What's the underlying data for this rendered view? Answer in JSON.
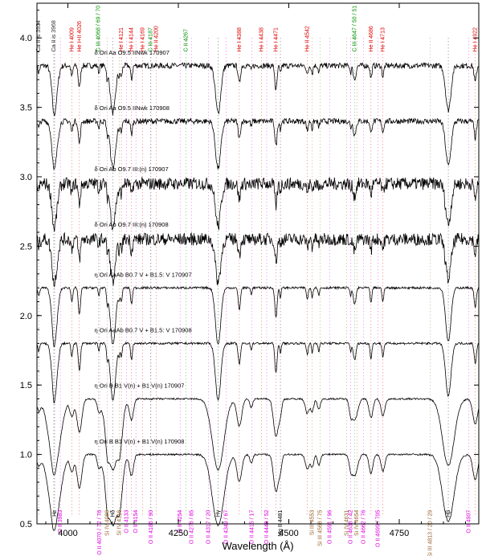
{
  "chart_data": {
    "type": "line",
    "title": "",
    "xlabel": "Wavelength (Å)",
    "ylabel": "",
    "xlim": [
      3930,
      4930
    ],
    "ylim": [
      0.5,
      4.25
    ],
    "x_ticks": [
      {
        "v": 4000,
        "label": "4000"
      },
      {
        "v": 4250,
        "label": "4250"
      },
      {
        "v": 4500,
        "label": "4500"
      },
      {
        "v": 4750,
        "label": "4750"
      }
    ],
    "y_ticks": [
      {
        "v": 0.5,
        "label": "0.5"
      },
      {
        "v": 1.0,
        "label": "1.0"
      },
      {
        "v": 1.5,
        "label": "1.5"
      },
      {
        "v": 2.0,
        "label": "2.0"
      },
      {
        "v": 2.5,
        "label": "2.5"
      },
      {
        "v": 3.0,
        "label": "3.0"
      },
      {
        "v": 3.5,
        "label": "3.5"
      },
      {
        "v": 4.0,
        "label": "4.0"
      }
    ],
    "colors": {
      "caii": "#333333",
      "hei": "#e00000",
      "ciii": "#009000",
      "oii": "#e000e0",
      "siiii": "#996633",
      "hydrogen": "#000000",
      "spectrum": "#000000"
    },
    "series": [
      {
        "name": "δ Ori Aa   O9.5 IINwk 170907",
        "offset": 3.8,
        "depth": 1.0,
        "noise": 0.02,
        "label_x": 4060,
        "label_dy": 0.08
      },
      {
        "name": "δ Ori Aa   O9.5 IINwk 170908",
        "offset": 3.4,
        "depth": 1.0,
        "noise": 0.02,
        "label_x": 4060,
        "label_dy": 0.08
      },
      {
        "name": "δ Ori Ab   O9.7 III:(n) 170907",
        "offset": 2.95,
        "depth": 0.9,
        "noise": 0.045,
        "label_x": 4060,
        "label_dy": 0.09
      },
      {
        "name": "δ Ori Ab   O9.7 III:(n) 170908",
        "offset": 2.55,
        "depth": 0.9,
        "noise": 0.045,
        "label_x": 4060,
        "label_dy": 0.09
      },
      {
        "name": "η Ori AaAb   B0.7 V + B1.5: V 170907",
        "offset": 2.2,
        "depth": 1.2,
        "noise": 0.008,
        "label_x": 4060,
        "label_dy": 0.08
      },
      {
        "name": "η Ori AaAb   B0.7 V + B1.5: V 170908",
        "offset": 1.8,
        "depth": 1.2,
        "noise": 0.008,
        "label_x": 4060,
        "label_dy": 0.08
      },
      {
        "name": "η Ori B   B1 V(n) + B1 V(n) 170907",
        "offset": 1.4,
        "depth": 1.5,
        "noise": 0.006,
        "label_x": 4060,
        "label_dy": 0.08
      },
      {
        "name": "η Ori B   B1 V(n) + B1 V(n) 170908",
        "offset": 1.0,
        "depth": 1.5,
        "noise": 0.006,
        "label_x": 4060,
        "label_dy": 0.08
      }
    ],
    "top_lines": [
      {
        "label": "Ca II is 3934",
        "x": 3934,
        "group": "caii"
      },
      {
        "label": "Ca II is 3968",
        "x": 3968,
        "group": "caii"
      },
      {
        "label": "He I 4009",
        "x": 4009,
        "group": "hei"
      },
      {
        "label": "He I+II 4026",
        "x": 4026,
        "group": "hei"
      },
      {
        "label": "C III 4068 / 69 / 70",
        "x": 4069,
        "group": "ciii"
      },
      {
        "label": "He I 4121",
        "x": 4121,
        "group": "hei"
      },
      {
        "label": "He I 4144",
        "x": 4144,
        "group": "hei"
      },
      {
        "label": "He I 4169",
        "x": 4169,
        "group": "hei"
      },
      {
        "label": "C III 4187",
        "x": 4187,
        "group": "ciii"
      },
      {
        "label": "He II 4200",
        "x": 4200,
        "group": "hei"
      },
      {
        "label": "C II 4267",
        "x": 4267,
        "group": "ciii"
      },
      {
        "label": "He I 4388",
        "x": 4388,
        "group": "hei"
      },
      {
        "label": "He I 4438",
        "x": 4438,
        "group": "hei"
      },
      {
        "label": "He I 4471",
        "x": 4471,
        "group": "hei"
      },
      {
        "label": "He II 4542",
        "x": 4542,
        "group": "hei"
      },
      {
        "label": "C III 4647 / 50 / 51",
        "x": 4649,
        "group": "ciii"
      },
      {
        "label": "He II 4686",
        "x": 4686,
        "group": "hei"
      },
      {
        "label": "He I 4713",
        "x": 4713,
        "group": "hei"
      },
      {
        "label": "He I 4922",
        "x": 4922,
        "group": "hei"
      }
    ],
    "bottom_lines": [
      {
        "label": "Hε",
        "x": 3970,
        "group": "hydrogen"
      },
      {
        "label": "O II 3983",
        "x": 3983,
        "group": "oii"
      },
      {
        "label": "O II 4070 / 72 / 76",
        "x": 4072,
        "group": "oii"
      },
      {
        "label": "Si IV 4089",
        "x": 4089,
        "group": "siiii"
      },
      {
        "label": "Hδ",
        "x": 4102,
        "group": "hydrogen"
      },
      {
        "label": "Si IV 4116",
        "x": 4116,
        "group": "siiii"
      },
      {
        "label": "O II 4133",
        "x": 4133,
        "group": "oii"
      },
      {
        "label": "O II 4154",
        "x": 4154,
        "group": "oii"
      },
      {
        "label": "O II 4186 / 90",
        "x": 4188,
        "group": "oii"
      },
      {
        "label": "O II 4254",
        "x": 4254,
        "group": "oii"
      },
      {
        "label": "O II 4276 / 85",
        "x": 4280,
        "group": "oii"
      },
      {
        "label": "O II 4317 / 20",
        "x": 4318,
        "group": "oii"
      },
      {
        "label": "Hγ",
        "x": 4340,
        "group": "hydrogen"
      },
      {
        "label": "O II 4349 / 67",
        "x": 4358,
        "group": "oii"
      },
      {
        "label": "O II 4415 / 17",
        "x": 4416,
        "group": "oii"
      },
      {
        "label": "O II 4448 / 52",
        "x": 4450,
        "group": "oii"
      },
      {
        "label": "Mg II 4481",
        "x": 4481,
        "group": "hydrogen"
      },
      {
        "label": "Si III 4553",
        "x": 4553,
        "group": "siiii"
      },
      {
        "label": "Si III 4568 / 75",
        "x": 4571,
        "group": "siiii"
      },
      {
        "label": "O II 4591 / 96",
        "x": 4593,
        "group": "oii"
      },
      {
        "label": "Si IV 4631",
        "x": 4631,
        "group": "siiii"
      },
      {
        "label": "O II 4638 / 42",
        "x": 4640,
        "group": "oii"
      },
      {
        "label": "Si IV 4654",
        "x": 4654,
        "group": "siiii"
      },
      {
        "label": "O II 4662 / 76",
        "x": 4669,
        "group": "oii"
      },
      {
        "label": "O II 4699 / 705",
        "x": 4702,
        "group": "oii"
      },
      {
        "label": "Si III 4813 / 20 / 29",
        "x": 4820,
        "group": "siiii"
      },
      {
        "label": "Hβ",
        "x": 4861,
        "group": "hydrogen"
      },
      {
        "label": "O II 4907",
        "x": 4907,
        "group": "oii"
      }
    ]
  }
}
